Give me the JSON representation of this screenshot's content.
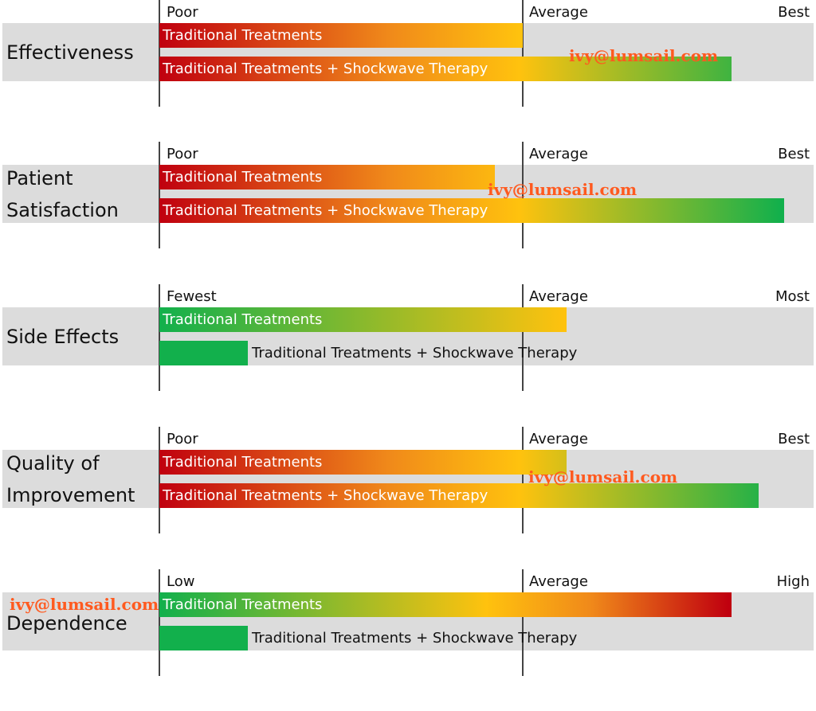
{
  "colors": {
    "red": "#c0000f",
    "orange": "#f0891a",
    "yellow": "#ffc20e",
    "green": "#12b04c",
    "band": "#dcdcdc"
  },
  "watermark": "ivy@lumsail.com",
  "chart_data": [
    {
      "type": "bar",
      "row_label": "Effectiveness",
      "scale": [
        "Poor",
        "Average",
        "Best"
      ],
      "color_direction": "red-to-green",
      "series": [
        {
          "name": "Traditional Treatments",
          "value": 0.556
        },
        {
          "name": "Traditional Treatments + Shockwave Therapy",
          "value": 0.875
        }
      ]
    },
    {
      "type": "bar",
      "row_label": "Patient Satisfaction",
      "scale": [
        "Poor",
        "Average",
        "Best"
      ],
      "color_direction": "red-to-green",
      "series": [
        {
          "name": "Traditional Treatments",
          "value": 0.513
        },
        {
          "name": "Traditional Treatments + Shockwave Therapy",
          "value": 0.955
        }
      ]
    },
    {
      "type": "bar",
      "row_label": "Side Effects",
      "scale": [
        "Fewest",
        "Average",
        "Most"
      ],
      "color_direction": "green-to-yellow",
      "series": [
        {
          "name": "Traditional Treatments",
          "value": 0.623
        },
        {
          "name": "Traditional Treatments + Shockwave Therapy",
          "value": 0.135
        }
      ]
    },
    {
      "type": "bar",
      "row_label": "Quality of Improvement",
      "scale": [
        "Poor",
        "Average",
        "Best"
      ],
      "color_direction": "red-to-green",
      "series": [
        {
          "name": "Traditional Treatments",
          "value": 0.623
        },
        {
          "name": "Traditional Treatments + Shockwave Therapy",
          "value": 0.916
        }
      ]
    },
    {
      "type": "bar",
      "row_label": "Dependence",
      "scale": [
        "Low",
        "Average",
        "High"
      ],
      "color_direction": "green-to-red",
      "series": [
        {
          "name": "Traditional Treatments",
          "value": 0.875
        },
        {
          "name": "Traditional Treatments + Shockwave Therapy",
          "value": 0.135
        }
      ]
    }
  ]
}
